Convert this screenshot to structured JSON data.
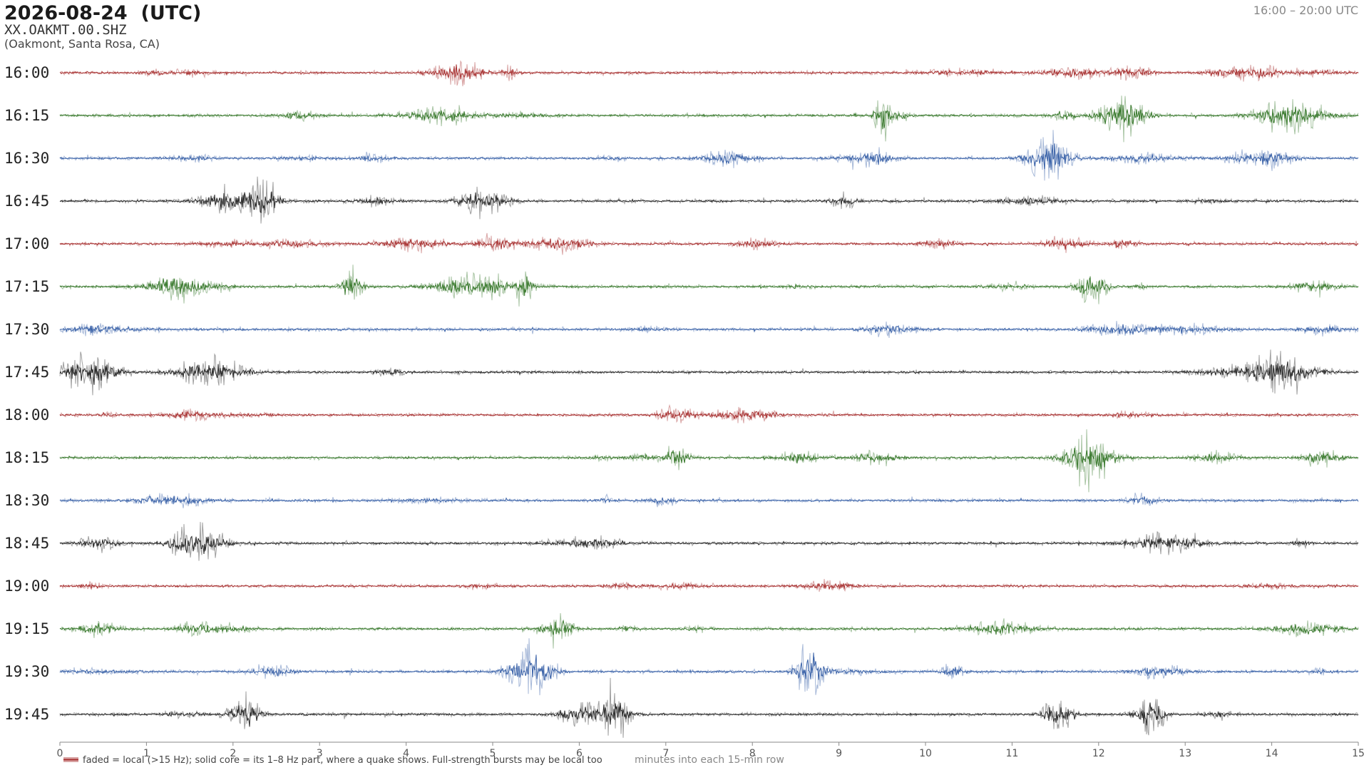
{
  "chart_data": {
    "type": "helicorder",
    "title": "2026-08-24  (UTC)",
    "subtitle": "XX.OAKMT.00.SHZ",
    "location": "(Oakmont, Santa Rosa, CA)",
    "time_range": "16:00 – 20:00 UTC",
    "categories": [
      "16:00",
      "16:15",
      "16:30",
      "16:45",
      "17:00",
      "17:15",
      "17:30",
      "17:45",
      "18:00",
      "18:15",
      "18:30",
      "18:45",
      "19:00",
      "19:15",
      "19:30",
      "19:45"
    ],
    "colors": [
      "#a83232",
      "#3a7a2e",
      "#3a62a8",
      "#2a2a2a"
    ],
    "xlim": [
      0,
      15
    ],
    "xticks": [
      0,
      1,
      2,
      3,
      4,
      5,
      6,
      7,
      8,
      9,
      10,
      11,
      12,
      13,
      14,
      15
    ],
    "xlabel": "minutes into each 15-min row",
    "legend": "faded = local (>15 Hz); solid core = its 1–8 Hz part, where a quake shows. Full-strength bursts may be local too"
  }
}
